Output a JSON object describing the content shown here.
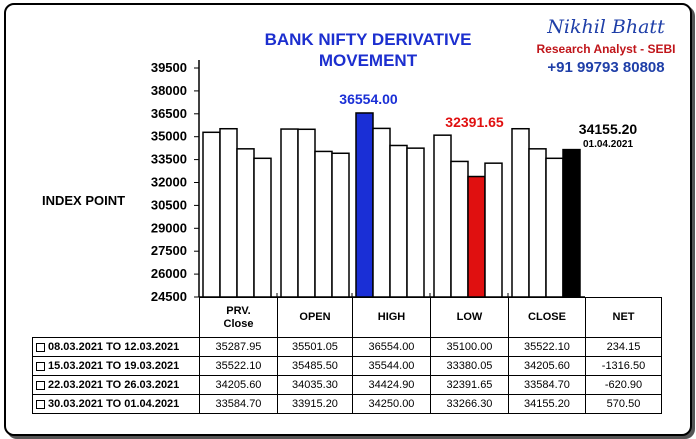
{
  "brand": {
    "name": "Nikhil Bhatt",
    "role": "Research Analyst - SEBI",
    "phone": "+91 99793 80808"
  },
  "chart_data": {
    "type": "bar",
    "title": [
      "BANK NIFTY DERIVATIVE",
      "MOVEMENT"
    ],
    "ylabel": "INDEX POINT",
    "ylim": [
      24500,
      39500
    ],
    "yticks": [
      "39500",
      "38000",
      "36500",
      "35000",
      "33500",
      "32000",
      "30500",
      "29000",
      "27500",
      "26000",
      "24500"
    ],
    "ytick_values": [
      39500,
      38000,
      36500,
      35000,
      33500,
      32000,
      30500,
      29000,
      27500,
      26000,
      24500
    ],
    "categories": [
      "PRV. Close",
      "OPEN",
      "HIGH",
      "LOW",
      "CLOSE"
    ],
    "series": [
      {
        "name": "08.03.2021 TO 12.03.2021",
        "values": [
          35287.95,
          35501.05,
          36554.0,
          35100.0,
          35522.1
        ],
        "net": "234.15"
      },
      {
        "name": "15.03.2021 TO 19.03.2021",
        "values": [
          35522.1,
          35485.5,
          35544.0,
          33380.05,
          34205.6
        ],
        "net": "-1316.50"
      },
      {
        "name": "22.03.2021 TO 26.03.2021",
        "values": [
          34205.6,
          34035.3,
          34424.9,
          32391.65,
          33584.7
        ],
        "net": "-620.90"
      },
      {
        "name": "30.03.2021 TO 01.04.2021",
        "values": [
          33584.7,
          33915.2,
          34250.0,
          33266.3,
          34155.2
        ],
        "net": "570.50"
      }
    ],
    "highlight": {
      "HIGH": "#1a2fd6",
      "LOW": "#e01010",
      "CLOSE": "#000000"
    },
    "annotations": [
      {
        "text": "36554.00",
        "color": "#1a2fd6"
      },
      {
        "text": "32391.65",
        "color": "#e01010"
      },
      {
        "text": "34155.20",
        "color": "#000000"
      },
      {
        "text": "01.04.2021",
        "color": "#000000"
      }
    ],
    "table_headers": [
      "PRV. Close",
      "OPEN",
      "HIGH",
      "LOW",
      "CLOSE",
      "NET"
    ],
    "table_rows": [
      [
        "35287.95",
        "35501.05",
        "36554.00",
        "35100.00",
        "35522.10",
        "234.15"
      ],
      [
        "35522.10",
        "35485.50",
        "35544.00",
        "33380.05",
        "34205.60",
        "-1316.50"
      ],
      [
        "34205.60",
        "34035.30",
        "34424.90",
        "32391.65",
        "33584.70",
        "-620.90"
      ],
      [
        "33584.70",
        "33915.20",
        "34250.00",
        "33266.30",
        "34155.20",
        "570.50"
      ]
    ]
  }
}
